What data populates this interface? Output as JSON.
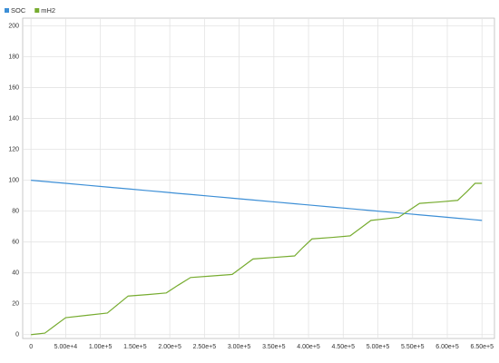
{
  "chart_data": {
    "type": "line",
    "x": [
      0,
      20000,
      35000,
      50000,
      80000,
      110000,
      125000,
      140000,
      170000,
      195000,
      212000,
      230000,
      260000,
      290000,
      305000,
      320000,
      350000,
      380000,
      392000,
      405000,
      435000,
      460000,
      475000,
      490000,
      510000,
      530000,
      545000,
      560000,
      590000,
      615000,
      628000,
      640000,
      650000
    ],
    "series": [
      {
        "name": "SOC",
        "color": "#3d8fd6",
        "values": [
          100,
          99.2,
          98.6,
          98,
          96.8,
          95.6,
          95,
          94.4,
          93.2,
          92.2,
          91.5,
          90.8,
          89.6,
          88.4,
          87.8,
          87.2,
          86,
          84.8,
          84.3,
          83.8,
          82.6,
          81.6,
          81,
          80.4,
          79.6,
          78.8,
          78.2,
          77.6,
          76.4,
          75.4,
          74.9,
          74.4,
          74
        ]
      },
      {
        "name": "mH2",
        "color": "#77ac30",
        "values": [
          0,
          1,
          6,
          11,
          12.5,
          14,
          19.5,
          25,
          26,
          27,
          32,
          37,
          38,
          39,
          44,
          49,
          50,
          51,
          56.5,
          62,
          63,
          64,
          69,
          74,
          75,
          76,
          80.5,
          85,
          86,
          87,
          92.5,
          98,
          98
        ]
      }
    ],
    "xlim": [
      -12000,
      668000
    ],
    "ylim": [
      -2.5,
      205
    ],
    "xticks": [
      0,
      {
        "value": 50000,
        "label": "5.00e+4"
      },
      {
        "value": 100000,
        "label": "1.00e+5"
      },
      {
        "value": 150000,
        "label": "1.50e+5"
      },
      {
        "value": 200000,
        "label": "2.00e+5"
      },
      {
        "value": 250000,
        "label": "2.50e+5"
      },
      {
        "value": 300000,
        "label": "3.00e+5"
      },
      {
        "value": 350000,
        "label": "3.50e+5"
      },
      {
        "value": 400000,
        "label": "4.00e+5"
      },
      {
        "value": 450000,
        "label": "4.50e+5"
      },
      {
        "value": 500000,
        "label": "5.00e+5"
      },
      {
        "value": 550000,
        "label": "5.50e+5"
      },
      {
        "value": 600000,
        "label": "6.00e+5"
      },
      {
        "value": 650000,
        "label": "6.50e+5"
      }
    ],
    "yticks": [
      0,
      20,
      40,
      60,
      80,
      100,
      120,
      140,
      160,
      180,
      200
    ],
    "grid": true,
    "legend": "top-left"
  }
}
